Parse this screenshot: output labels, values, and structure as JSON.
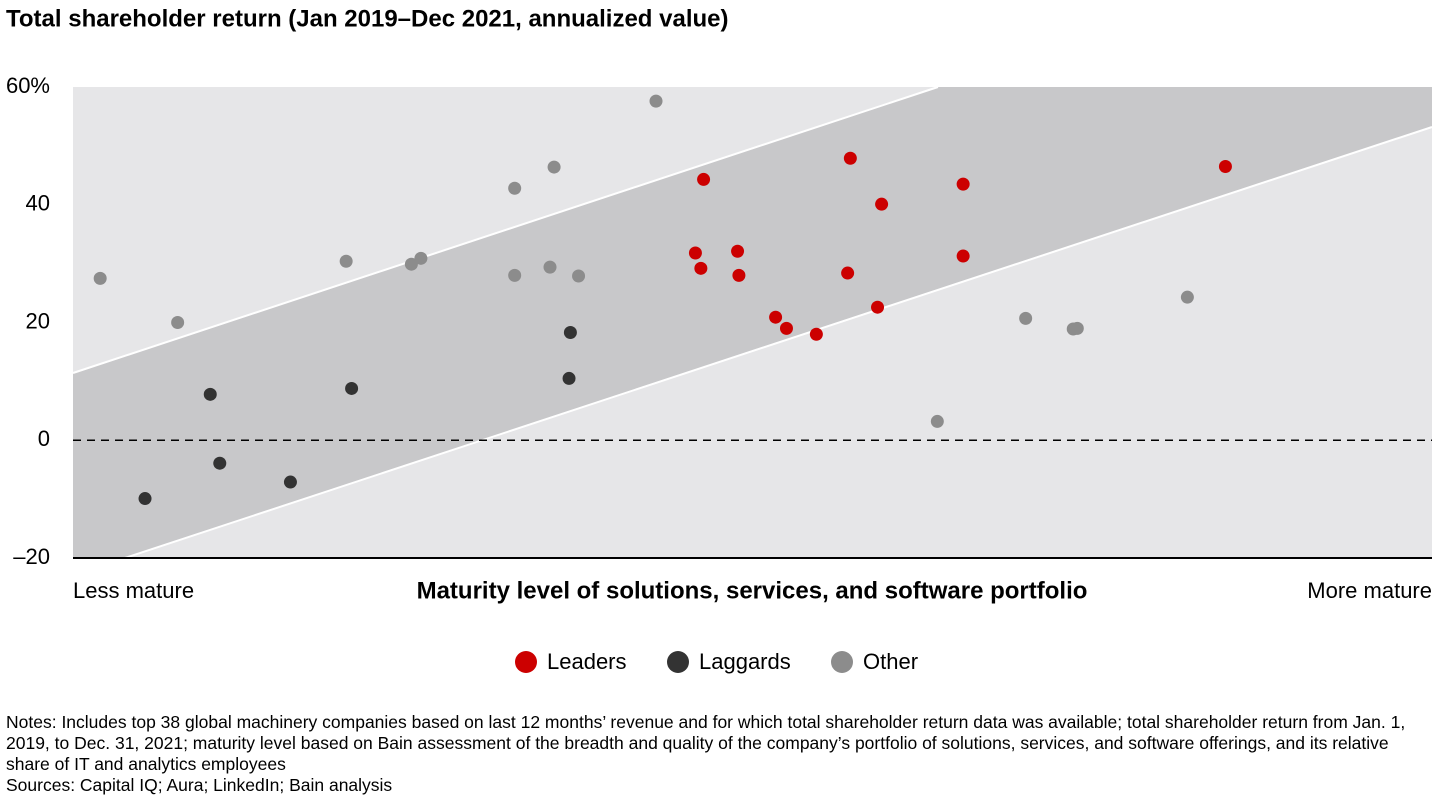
{
  "chart_data": {
    "type": "scatter",
    "title": "Total shareholder return (Jan 2019–Dec 2021, annualized value)",
    "x_label": "Maturity level of solutions, services, and software portfolio",
    "x_start_label": "Less mature",
    "x_end_label": "More mature",
    "xlim": [
      0,
      100
    ],
    "ylim": [
      -20,
      60
    ],
    "yticks": [
      {
        "value": -20,
        "label": "–20"
      },
      0,
      20,
      40,
      {
        "value": 60,
        "label": "60%"
      }
    ],
    "series": [
      {
        "name": "Leaders",
        "color": "#cc0000",
        "x": [
          46.4,
          57.2,
          59.5,
          65.5,
          84.8,
          45.8,
          46.2,
          48.9,
          49.0,
          57.0,
          65.5,
          51.7,
          52.5,
          54.7,
          59.2
        ],
        "values": [
          44.3,
          47.9,
          40.1,
          43.5,
          46.5,
          31.8,
          29.2,
          32.1,
          28.0,
          28.4,
          31.3,
          20.9,
          19.0,
          18.0,
          22.6
        ]
      },
      {
        "name": "Laggards",
        "color": "#333333",
        "x": [
          5.3,
          10.1,
          10.8,
          16.0,
          20.5,
          36.6,
          36.5
        ],
        "values": [
          -9.9,
          7.8,
          -3.9,
          -7.1,
          8.8,
          18.3,
          10.5
        ]
      },
      {
        "name": "Other",
        "color": "#8c8c8c",
        "x": [
          2.0,
          7.7,
          20.1,
          24.9,
          25.6,
          32.5,
          35.4,
          32.5,
          35.1,
          37.2,
          42.9,
          63.6,
          70.1,
          73.6,
          73.9,
          82.0
        ],
        "values": [
          27.5,
          20.0,
          30.4,
          29.9,
          30.9,
          42.8,
          46.4,
          28.0,
          29.4,
          27.9,
          57.6,
          3.2,
          20.7,
          18.9,
          19.0,
          24.3
        ]
      }
    ],
    "notes": "Notes: Includes top 38 global machinery companies based on last 12 months’ revenue and for which total shareholder return data was available; total shareholder return from Jan. 1, 2019, to Dec. 31, 2021; maturity level based on Bain assessment of the breadth and quality of the company’s portfolio of solutions, services, and software offerings, and its relative share of IT and analytics employees",
    "sources": "Sources: Capital IQ; Aura; LinkedIn; Bain analysis"
  }
}
